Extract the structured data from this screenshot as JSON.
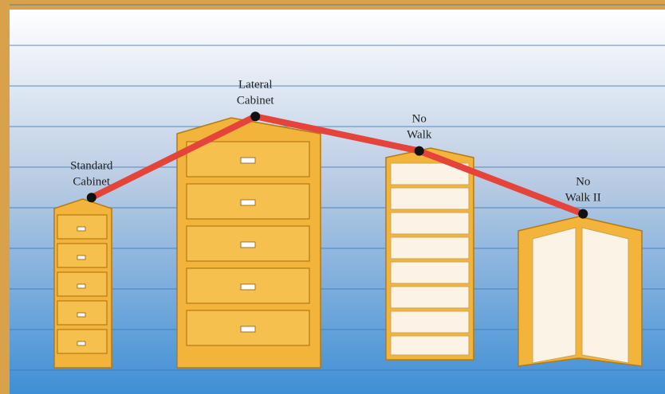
{
  "chart_data": {
    "type": "line",
    "categories": [
      "Standard\nCabinet",
      "Lateral\nCabinet",
      "No\nWalk",
      "No\nWalk II"
    ],
    "values": [
      4.25,
      6.25,
      5.4,
      3.85
    ],
    "color": "#e5443a",
    "ylim": [
      0,
      9
    ],
    "grid": true
  }
}
